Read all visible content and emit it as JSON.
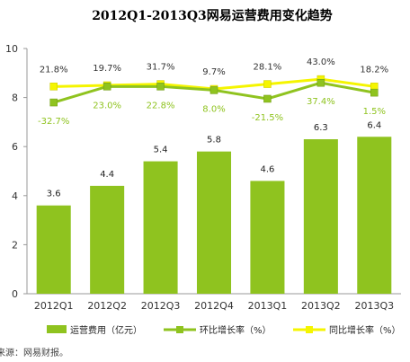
{
  "chart_data": {
    "type": "bar",
    "title": "2012Q1-2013Q3网易运营费用变化趋势",
    "categories": [
      "2012Q1",
      "2012Q2",
      "2012Q3",
      "2012Q4",
      "2013Q1",
      "2013Q2",
      "2013Q3"
    ],
    "y_ticks": [
      "0",
      "2",
      "4",
      "6",
      "8",
      "10"
    ],
    "ylim": [
      0,
      10
    ],
    "series": [
      {
        "name": "运营费用（亿元）",
        "type": "bar",
        "values": [
          3.6,
          4.4,
          5.4,
          5.8,
          4.6,
          6.3,
          6.4
        ],
        "labels": [
          "3.6",
          "4.4",
          "5.4",
          "5.8",
          "4.6",
          "6.3",
          "6.4"
        ],
        "color": "#8fc31f"
      },
      {
        "name": "环比增长率（%）",
        "type": "line",
        "values": [
          7.8,
          8.45,
          8.45,
          8.3,
          7.95,
          8.6,
          8.2
        ],
        "labels": [
          "-32.7%",
          "23.0%",
          "22.8%",
          "8.0%",
          "-21.5%",
          "37.4%",
          "1.5%"
        ],
        "color": "#8fc31f"
      },
      {
        "name": "同比增长率（%）",
        "type": "line",
        "values": [
          8.45,
          8.5,
          8.55,
          8.35,
          8.55,
          8.75,
          8.45
        ],
        "labels": [
          "21.8%",
          "19.7%",
          "31.7%",
          "9.7%",
          "28.1%",
          "43.0%",
          "18.2%"
        ],
        "color": "#f5f500"
      }
    ],
    "legend_position": "bottom",
    "grid": false
  },
  "source": "来源：网易财报。"
}
